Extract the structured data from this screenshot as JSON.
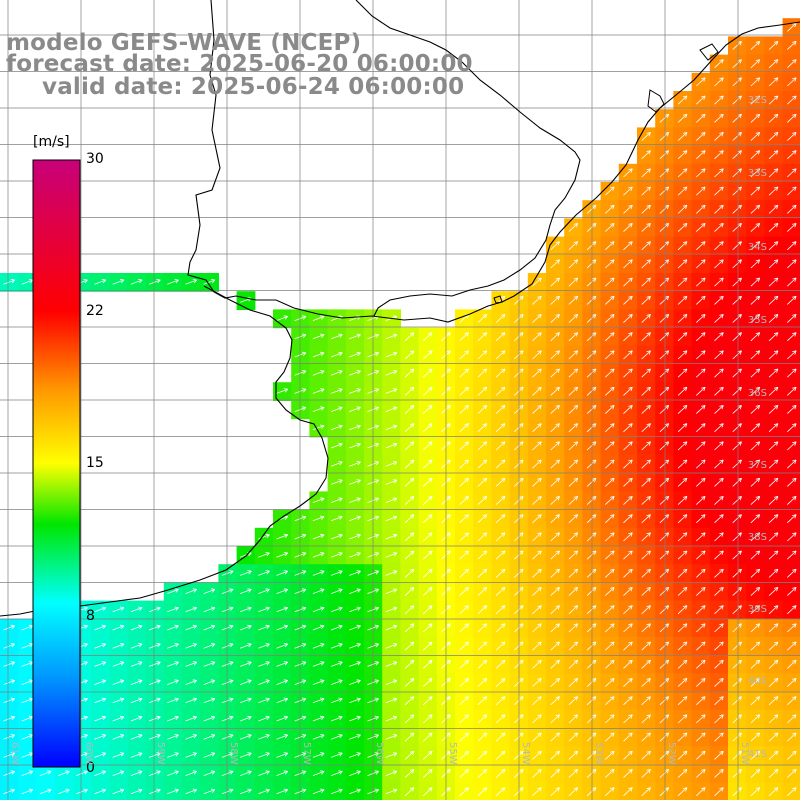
{
  "titles": {
    "line1": "modelo GEFS-WAVE (NCEP)",
    "line2": "forecast date: 2025-06-20 06:00:00",
    "line3": "valid date: 2025-06-24 06:00:00"
  },
  "colorbar": {
    "unit": "[m/s]",
    "min": 0,
    "max": 30,
    "ticks": [
      {
        "value": 30,
        "label": "30"
      },
      {
        "value": 22,
        "label": "22"
      },
      {
        "value": 15,
        "label": "15"
      },
      {
        "value": 8,
        "label": "8"
      },
      {
        "value": 0,
        "label": "0"
      }
    ],
    "colors": [
      "#0000ff",
      "#00bfff",
      "#00ffff",
      "#00ee00",
      "#33cc00",
      "#ffff00",
      "#ff8000",
      "#ff0000",
      "#c8007a"
    ]
  },
  "map": {
    "lat_labels": [
      "32S",
      "33S",
      "34S",
      "35S",
      "36S",
      "37S",
      "38S",
      "39S",
      "40S",
      "41S"
    ],
    "lon_labels": [
      "61W",
      "60W",
      "59W",
      "58W",
      "57W",
      "56W",
      "55W",
      "54W",
      "53W",
      "52W",
      "51W"
    ],
    "field_description_shown": "wind speed shaded with arrows",
    "coastline_color": "#000000",
    "grid_color": "#808080"
  }
}
